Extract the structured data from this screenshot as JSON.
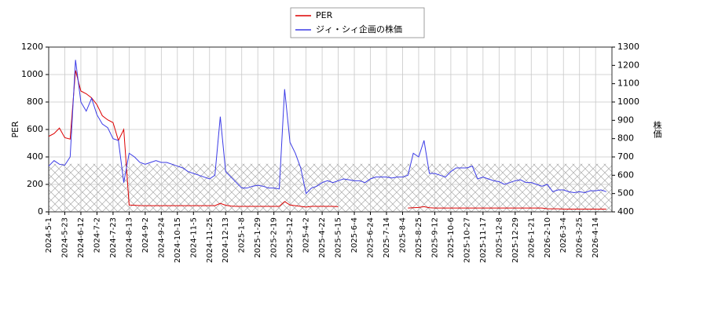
{
  "chart_data": {
    "type": "line",
    "categories": [
      "2024-5-1",
      null,
      null,
      "2024-5-23",
      null,
      null,
      "2024-6-12",
      null,
      null,
      "2024-7-2",
      null,
      null,
      "2024-7-23",
      null,
      null,
      "2024-8-13",
      null,
      null,
      "2024-9-2",
      null,
      null,
      "2024-9-24",
      null,
      null,
      "2024-10-15",
      null,
      null,
      "2024-11-5",
      null,
      null,
      "2024-11-25",
      null,
      null,
      "2024-12-13",
      null,
      null,
      "2025-1-8",
      null,
      null,
      "2025-1-29",
      null,
      null,
      "2025-2-19",
      null,
      null,
      "2025-3-12",
      null,
      null,
      "2025-4-2",
      null,
      null,
      "2025-4-22",
      null,
      null,
      "2025-5-15",
      null,
      null,
      "2025-6-4",
      null,
      null,
      "2025-6-24",
      null,
      null,
      "2025-7-14",
      null,
      null,
      "2025-8-4",
      null,
      null,
      "2025-8-25",
      null,
      null,
      "2025-9-12",
      null,
      null,
      "2025-10-6",
      null,
      null,
      "2025-10-27",
      null,
      null,
      "2025-11-17",
      null,
      null,
      "2025-12-8",
      null,
      null,
      "2025-12-29",
      null,
      null,
      "2026-1-21",
      null,
      null,
      "2026-2-10",
      null,
      null,
      "2026-3-4",
      null,
      null,
      "2026-3-25",
      null,
      null,
      "2026-4-14",
      null,
      null
    ],
    "series": [
      {
        "name": "PER",
        "color": "#dd0000",
        "values": [
          550,
          570,
          610,
          540,
          530,
          1030,
          880,
          860,
          830,
          780,
          700,
          670,
          650,
          520,
          600,
          50,
          48,
          46,
          45,
          45,
          45,
          45,
          45,
          45,
          45,
          45,
          45,
          45,
          45,
          45,
          45,
          45,
          62,
          48,
          42,
          40,
          40,
          40,
          40,
          40,
          40,
          40,
          40,
          40,
          75,
          50,
          45,
          40,
          35,
          40,
          40,
          40,
          40,
          40,
          38,
          null,
          null,
          null,
          null,
          null,
          null,
          null,
          null,
          null,
          null,
          null,
          null,
          28,
          30,
          32,
          38,
          30,
          28,
          28,
          28,
          28,
          28,
          28,
          28,
          28,
          28,
          28,
          28,
          28,
          28,
          28,
          28,
          28,
          28,
          28,
          28,
          28,
          28,
          22,
          22,
          22,
          20,
          20,
          20,
          20,
          20,
          20,
          20,
          20,
          20
        ]
      },
      {
        "name": "ジィ・シィ企画の株価",
        "color": "#3b3be6",
        "axis": "y2",
        "values": [
          650,
          680,
          660,
          655,
          700,
          1230,
          1000,
          950,
          1020,
          930,
          880,
          860,
          800,
          790,
          560,
          720,
          700,
          670,
          660,
          670,
          680,
          670,
          670,
          660,
          650,
          640,
          620,
          610,
          600,
          590,
          580,
          600,
          920,
          620,
          590,
          560,
          530,
          530,
          540,
          545,
          540,
          530,
          530,
          525,
          1070,
          780,
          720,
          640,
          500,
          530,
          540,
          560,
          570,
          560,
          570,
          580,
          575,
          570,
          570,
          560,
          580,
          590,
          590,
          590,
          585,
          590,
          590,
          600,
          720,
          700,
          790,
          610,
          610,
          600,
          590,
          620,
          640,
          640,
          640,
          650,
          580,
          590,
          580,
          570,
          565,
          550,
          560,
          570,
          575,
          560,
          560,
          550,
          540,
          550,
          510,
          520,
          520,
          510,
          505,
          510,
          505,
          515,
          515,
          520,
          510
        ]
      }
    ],
    "ylabel": "PER",
    "y2label": "株価",
    "ylim": [
      0,
      1200
    ],
    "yticks": [
      0,
      200,
      400,
      600,
      800,
      1000,
      1200
    ],
    "y2lim": [
      400,
      1300
    ],
    "y2ticks": [
      400,
      500,
      600,
      700,
      800,
      900,
      1000,
      1100,
      1200,
      1300
    ],
    "hatch_band": [
      0,
      350
    ],
    "grid": true,
    "legend": "upper center"
  }
}
